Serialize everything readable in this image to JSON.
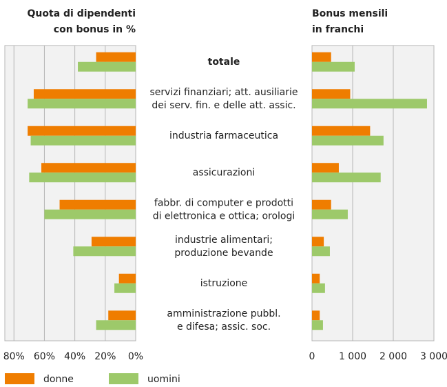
{
  "chart_data": [
    {
      "type": "bar",
      "orientation": "horizontal",
      "xreversed": true,
      "title": [
        "Quota di dipendenti",
        "con bonus in %"
      ],
      "categories": [
        [
          "totale"
        ],
        [
          "servizi finanziari; att. ausiliarie",
          "dei serv. fin. e delle att. assic."
        ],
        [
          "industria farmaceutica"
        ],
        [
          "assicurazioni"
        ],
        [
          "fabbr. di computer e prodotti",
          "di elettronica e ottica; orologi"
        ],
        [
          "industrie alimentari;",
          "produzione bevande"
        ],
        [
          "istruzione"
        ],
        [
          "amministrazione pubbl.",
          "e difesa; assic. soc."
        ]
      ],
      "series": [
        {
          "name": "donne",
          "color": "#ef7d00",
          "values": [
            26,
            67,
            71,
            62,
            50,
            29,
            11,
            18
          ]
        },
        {
          "name": "uomini",
          "color": "#9dc96a",
          "values": [
            38,
            71,
            69,
            70,
            60,
            41,
            14,
            26
          ]
        }
      ],
      "xlim": [
        0,
        86
      ],
      "xticks": [
        {
          "value": 80,
          "label": "80%"
        },
        {
          "value": 60,
          "label": "60%"
        },
        {
          "value": 40,
          "label": "40%"
        },
        {
          "value": 20,
          "label": "20%"
        },
        {
          "value": 0,
          "label": "0%"
        }
      ],
      "grid": true
    },
    {
      "type": "bar",
      "orientation": "horizontal",
      "xreversed": false,
      "title": [
        "Bonus mensili",
        "in franchi"
      ],
      "series": [
        {
          "color": "#ef7d00",
          "values": [
            470,
            940,
            1430,
            660,
            470,
            290,
            190,
            190
          ]
        },
        {
          "color": "#9dc96a",
          "values": [
            1050,
            2830,
            1760,
            1690,
            880,
            440,
            320,
            270
          ]
        }
      ],
      "xlim": [
        0,
        3000
      ],
      "xticks": [
        0,
        {
          "value": 1000,
          "label": "1 000"
        },
        {
          "value": 2000,
          "label": "2 000"
        },
        {
          "value": 3000,
          "label": "3 000"
        }
      ],
      "grid": true
    }
  ]
}
